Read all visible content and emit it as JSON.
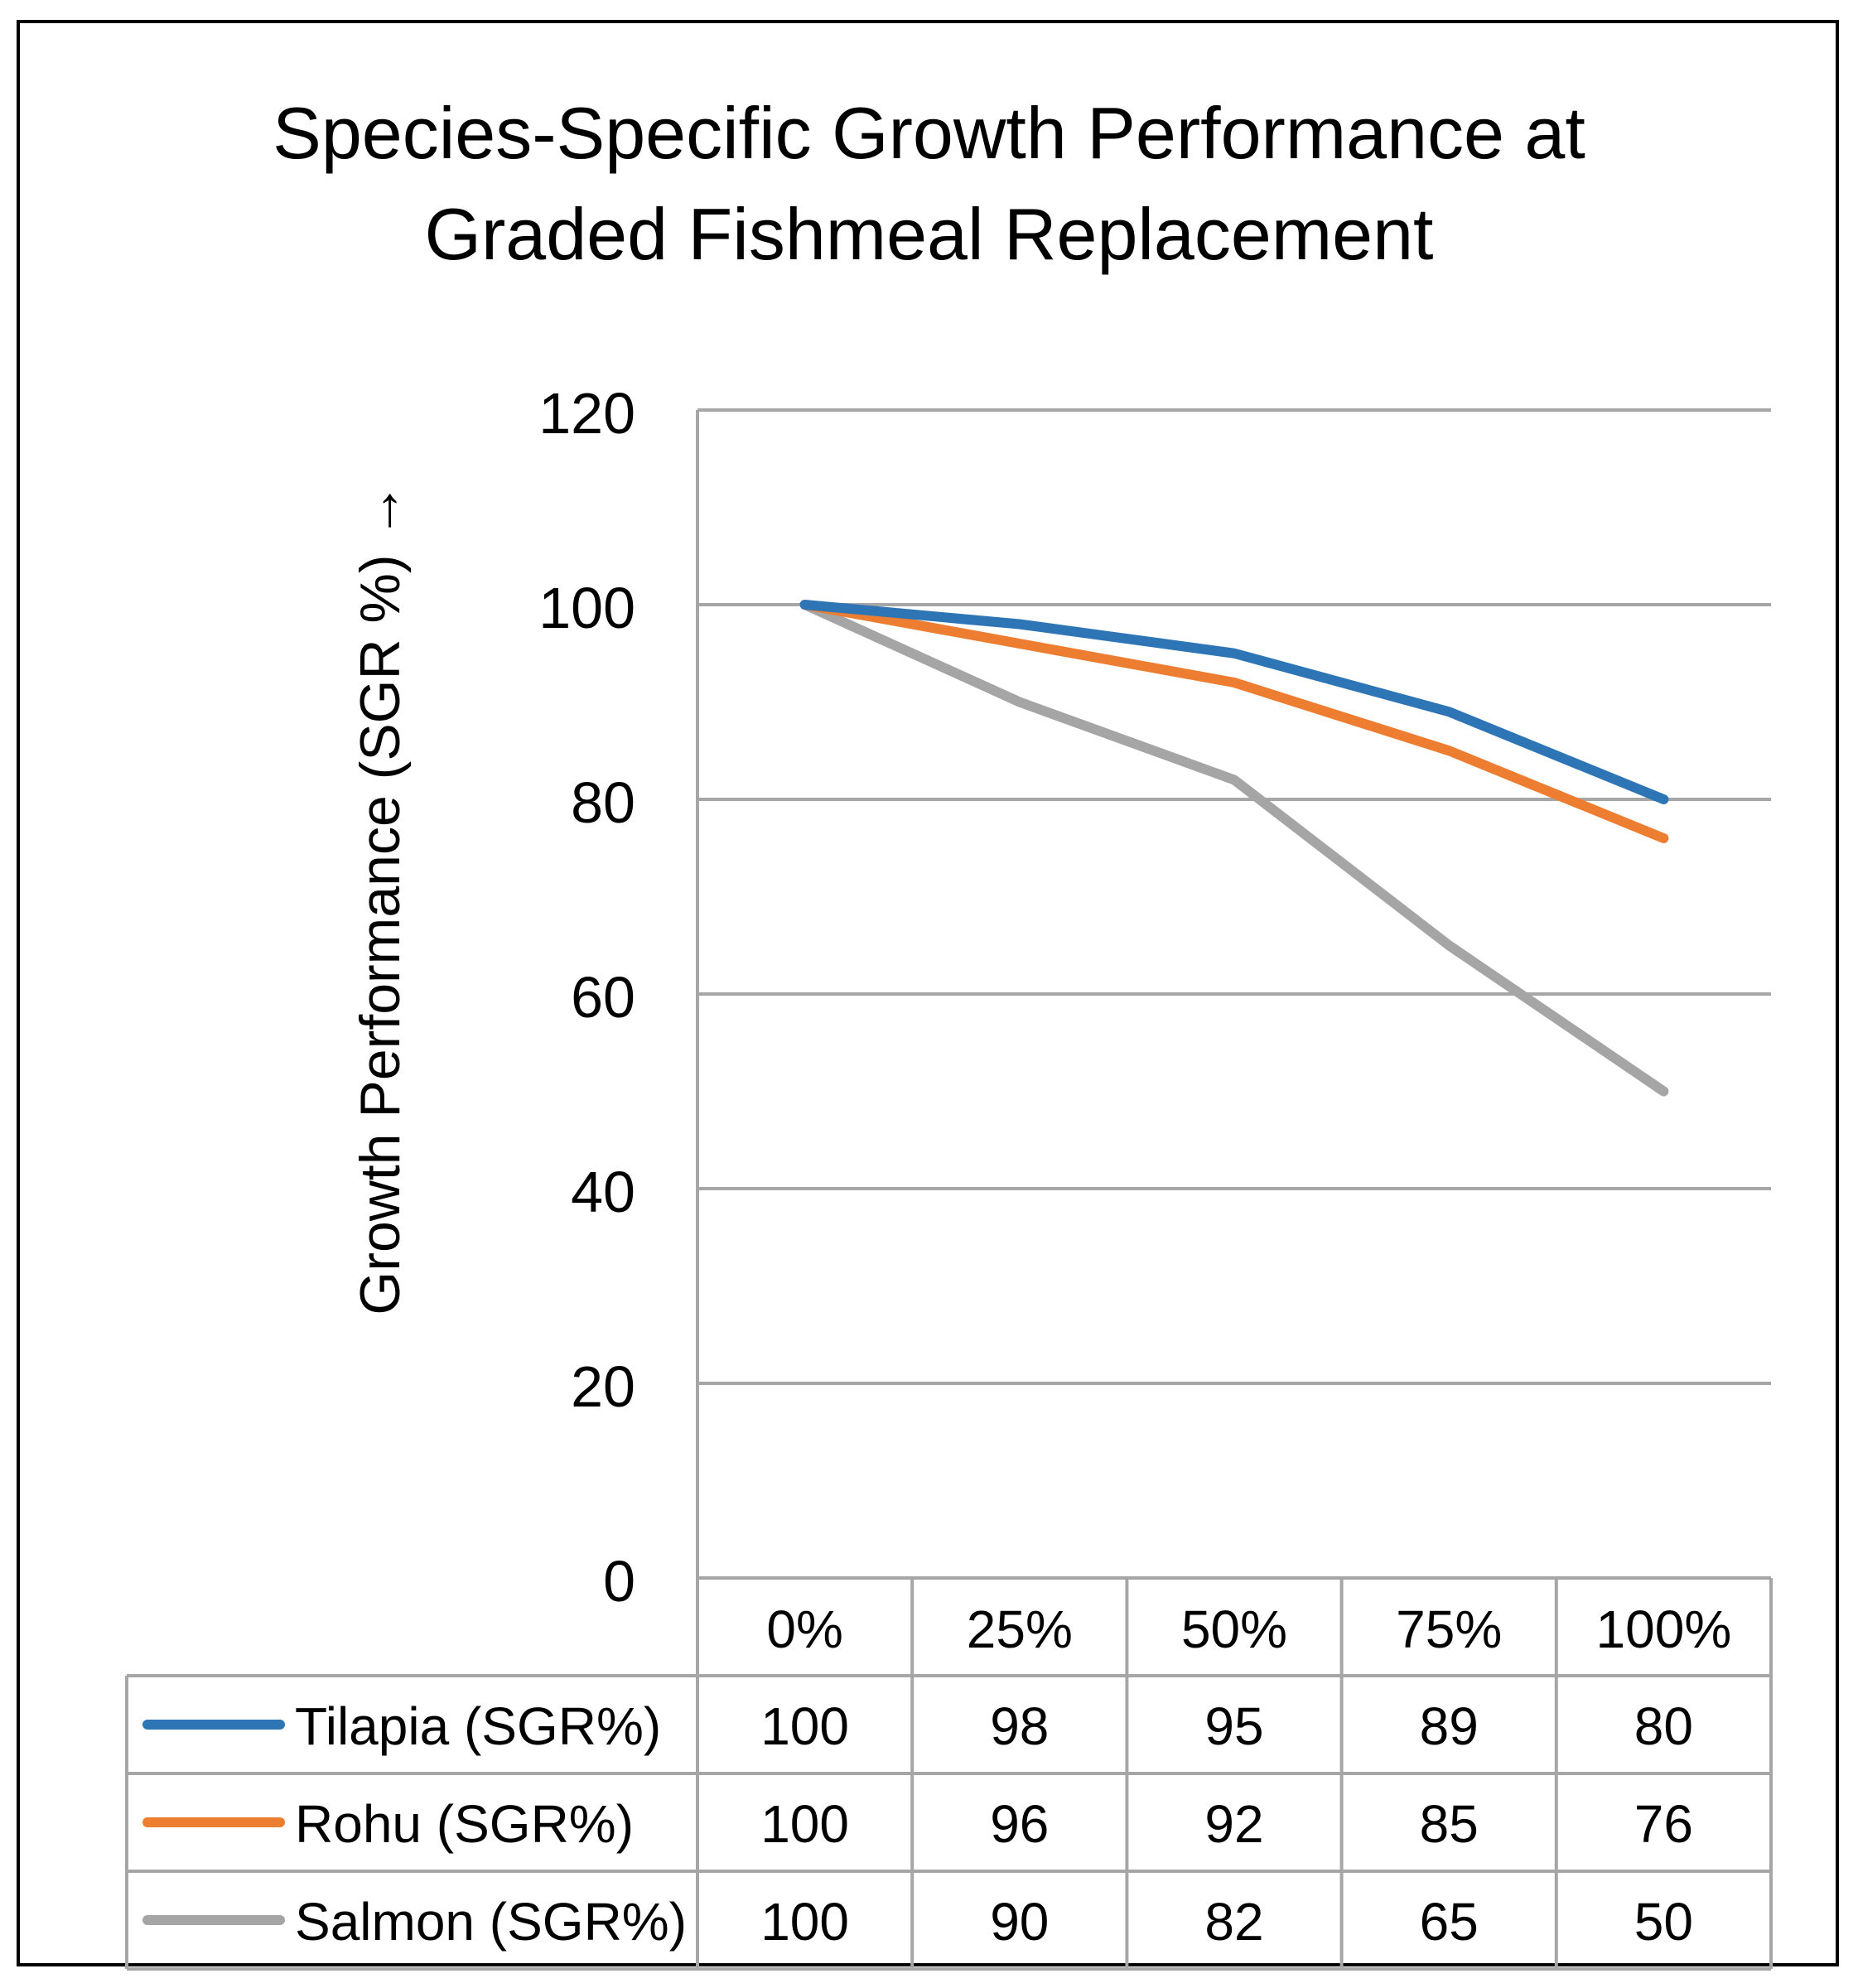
{
  "chart_data": {
    "type": "line",
    "title": "Species-Specific Growth Performance at Graded Fishmeal Replacement",
    "title_lines": [
      "Species-Specific Growth Performance at",
      "Graded Fishmeal Replacement"
    ],
    "xlabel": "",
    "ylabel": "Growth Performance (SGR %) →",
    "ylim": [
      0,
      120
    ],
    "yticks": [
      0,
      20,
      40,
      60,
      80,
      100,
      120
    ],
    "grid": true,
    "legend": "data-table",
    "categories": [
      "0%",
      "25%",
      "50%",
      "75%",
      "100%"
    ],
    "series": [
      {
        "name": "Tilapia (SGR%)",
        "color": "#2E75B6",
        "values": [
          100,
          98,
          95,
          89,
          80
        ]
      },
      {
        "name": "Rohu (SGR%)",
        "color": "#ED7D31",
        "values": [
          100,
          96,
          92,
          85,
          76
        ]
      },
      {
        "name": "Salmon (SGR%)",
        "color": "#A5A5A5",
        "values": [
          100,
          90,
          82,
          65,
          50
        ]
      }
    ]
  }
}
